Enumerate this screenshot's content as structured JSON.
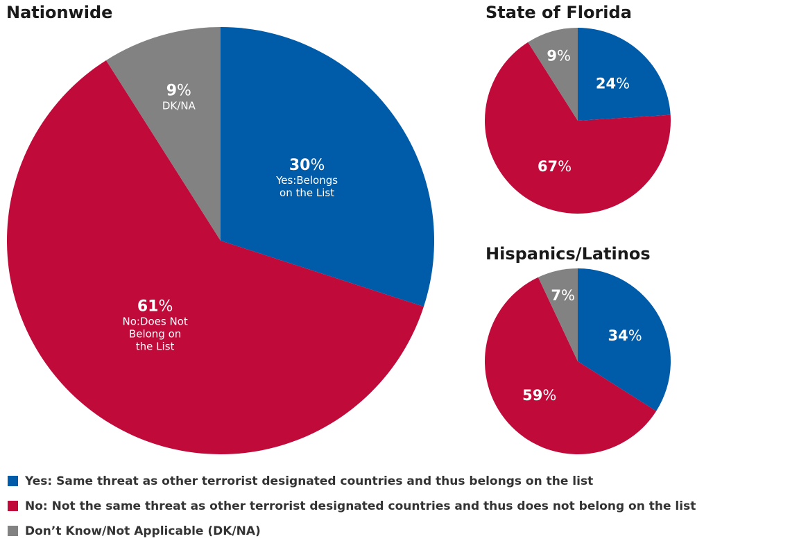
{
  "colors": {
    "yes": "#005ba9",
    "no": "#c00a3a",
    "dk": "#828282"
  },
  "chart_data": [
    {
      "type": "pie",
      "title": "Nationwide",
      "slices": [
        {
          "key": "yes",
          "value": 30,
          "label": "30",
          "pct": "%",
          "desc": [
            "Yes:Belongs",
            "on the List"
          ]
        },
        {
          "key": "no",
          "value": 61,
          "label": "61",
          "pct": "%",
          "desc": [
            "No:Does Not",
            "Belong on",
            "the List"
          ]
        },
        {
          "key": "dk",
          "value": 9,
          "label": "9",
          "pct": "%",
          "desc": [
            "DK/NA"
          ]
        }
      ]
    },
    {
      "type": "pie",
      "title": "State of Florida",
      "slices": [
        {
          "key": "yes",
          "value": 24,
          "label": "24",
          "pct": "%"
        },
        {
          "key": "no",
          "value": 67,
          "label": "67",
          "pct": "%"
        },
        {
          "key": "dk",
          "value": 9,
          "label": "9",
          "pct": "%"
        }
      ]
    },
    {
      "type": "pie",
      "title": "Hispanics/Latinos",
      "slices": [
        {
          "key": "yes",
          "value": 34,
          "label": "34",
          "pct": "%"
        },
        {
          "key": "no",
          "value": 59,
          "label": "59",
          "pct": "%"
        },
        {
          "key": "dk",
          "value": 7,
          "label": "7",
          "pct": "%"
        }
      ]
    }
  ],
  "legend": [
    {
      "key": "yes",
      "label": "Yes: Same threat as other terrorist designated countries and thus belongs on the list"
    },
    {
      "key": "no",
      "label": "No: Not the same threat as other terrorist designated countries and thus does not belong on the list"
    },
    {
      "key": "dk",
      "label": "Don’t Know/Not Applicable (DK/NA)"
    }
  ]
}
